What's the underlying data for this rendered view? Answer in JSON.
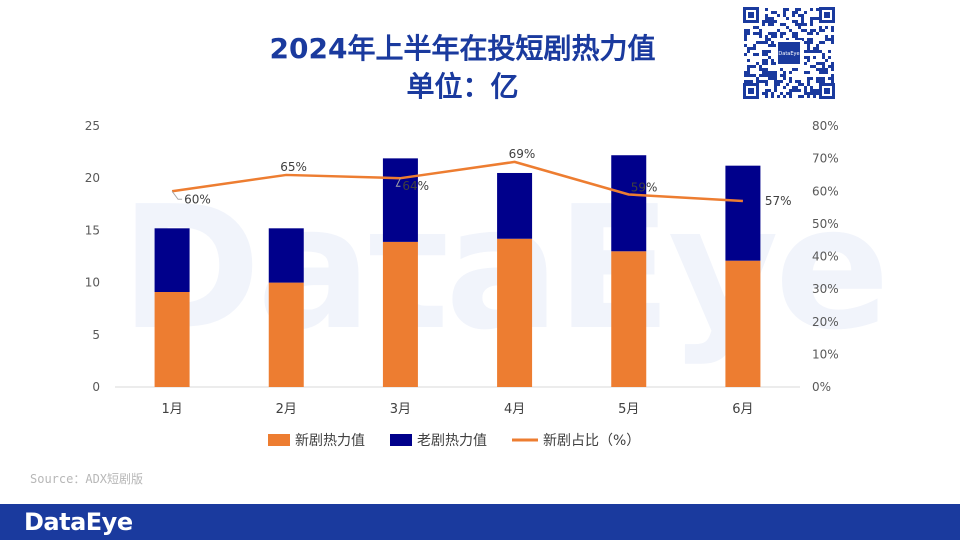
{
  "watermark": "DataEye",
  "chart_data": {
    "type": "bar",
    "title_line1": "2024年上半年在投短剧热力值",
    "title_line2": "单位：亿",
    "categories": [
      "1月",
      "2月",
      "3月",
      "4月",
      "5月",
      "6月"
    ],
    "series": [
      {
        "name": "新剧热力值",
        "kind": "bar",
        "color": "#ed7d31",
        "values": [
          9.1,
          10.0,
          13.9,
          14.2,
          13.0,
          12.1
        ]
      },
      {
        "name": "老剧热力值",
        "kind": "bar",
        "color": "#00008b",
        "values": [
          6.1,
          5.2,
          8.0,
          6.3,
          9.2,
          9.1
        ]
      },
      {
        "name": "新剧占比（%）",
        "kind": "line",
        "axis": "right",
        "color": "#ed7d31",
        "values": [
          60,
          65,
          64,
          69,
          59,
          57
        ]
      }
    ],
    "line_labels": [
      "60%",
      "65%",
      "64%",
      "69%",
      "59%",
      "57%"
    ],
    "y_left": {
      "min": 0,
      "max": 25,
      "ticks": [
        "0",
        "5",
        "10",
        "15",
        "20",
        "25"
      ]
    },
    "y_right": {
      "min": 0,
      "max": 80,
      "ticks": [
        "0%",
        "10%",
        "20%",
        "30%",
        "40%",
        "50%",
        "60%",
        "70%",
        "80%"
      ]
    },
    "legend_position": "bottom"
  },
  "source": "Source：ADX短剧版",
  "qr_label": "DataEye",
  "footer": {
    "brand": "DataEye"
  }
}
